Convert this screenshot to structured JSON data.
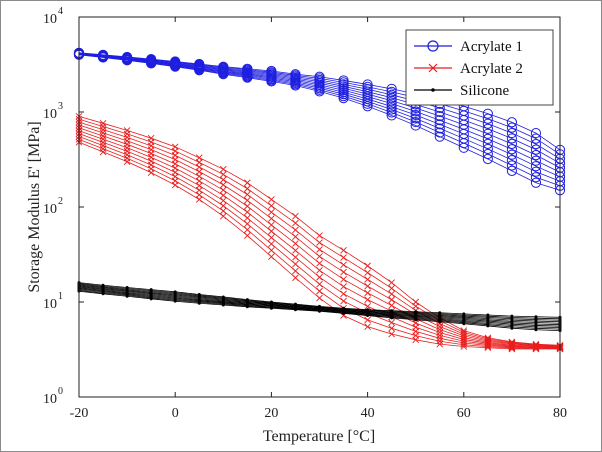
{
  "chart_data": {
    "type": "line",
    "xlabel": "Temperature [°C]",
    "ylabel": "Storage Modulus E' [MPa]",
    "xlim": [
      -20,
      80
    ],
    "ylim": [
      1,
      10000
    ],
    "yscale": "log",
    "grid": false,
    "legend_position": "top-right",
    "x_ticks": [
      "-20",
      "0",
      "20",
      "40",
      "60",
      "80"
    ],
    "y_ticks": [
      {
        "value": 1,
        "base": "10",
        "exp": "0"
      },
      {
        "value": 10,
        "base": "10",
        "exp": "1"
      },
      {
        "value": 100,
        "base": "10",
        "exp": "2"
      },
      {
        "value": 1000,
        "base": "10",
        "exp": "3"
      },
      {
        "value": 10000,
        "base": "10",
        "exp": "4"
      }
    ],
    "x": [
      -20,
      -15,
      -10,
      -5,
      0,
      5,
      10,
      15,
      20,
      25,
      30,
      35,
      40,
      45,
      50,
      55,
      60,
      65,
      70,
      75,
      80
    ],
    "series": [
      {
        "name": "Acrylate 1",
        "color": "#1f1fe0",
        "marker": "circle",
        "curves": 10,
        "values_upper": [
          4200,
          4000,
          3800,
          3600,
          3400,
          3200,
          3000,
          2850,
          2700,
          2500,
          2350,
          2150,
          1950,
          1750,
          1550,
          1350,
          1150,
          960,
          780,
          600,
          400
        ],
        "values_lower": [
          4000,
          3750,
          3500,
          3250,
          3000,
          2750,
          2500,
          2300,
          2100,
          1900,
          1650,
          1400,
          1150,
          920,
          720,
          550,
          420,
          320,
          240,
          180,
          150
        ]
      },
      {
        "name": "Acrylate 2",
        "color": "#e81e1e",
        "marker": "x",
        "curves": 10,
        "values_upper": [
          900,
          760,
          640,
          530,
          430,
          330,
          250,
          180,
          120,
          80,
          50,
          35,
          24,
          16,
          10,
          6.8,
          5.0,
          4.2,
          3.8,
          3.6,
          3.5
        ],
        "values_lower": [
          480,
          380,
          300,
          230,
          170,
          120,
          80,
          50,
          30,
          18,
          11,
          7.2,
          5.5,
          4.6,
          4.0,
          3.6,
          3.4,
          3.3,
          3.2,
          3.2,
          3.2
        ]
      },
      {
        "name": "Silicone",
        "color": "#000000",
        "marker": "dot",
        "curves": 10,
        "values_upper": [
          16,
          15,
          14.2,
          13.5,
          12.8,
          12,
          11.3,
          10.6,
          10,
          9.5,
          9,
          8.6,
          8.3,
          8.1,
          7.9,
          7.7,
          7.5,
          7.3,
          7.1,
          7.0,
          6.9
        ],
        "values_lower": [
          13,
          12.2,
          11.5,
          10.8,
          10.2,
          9.7,
          9.3,
          8.9,
          8.6,
          8.3,
          8.0,
          7.6,
          7.2,
          6.8,
          6.5,
          6.2,
          5.9,
          5.6,
          5.3,
          5.1,
          5.0
        ]
      }
    ]
  }
}
